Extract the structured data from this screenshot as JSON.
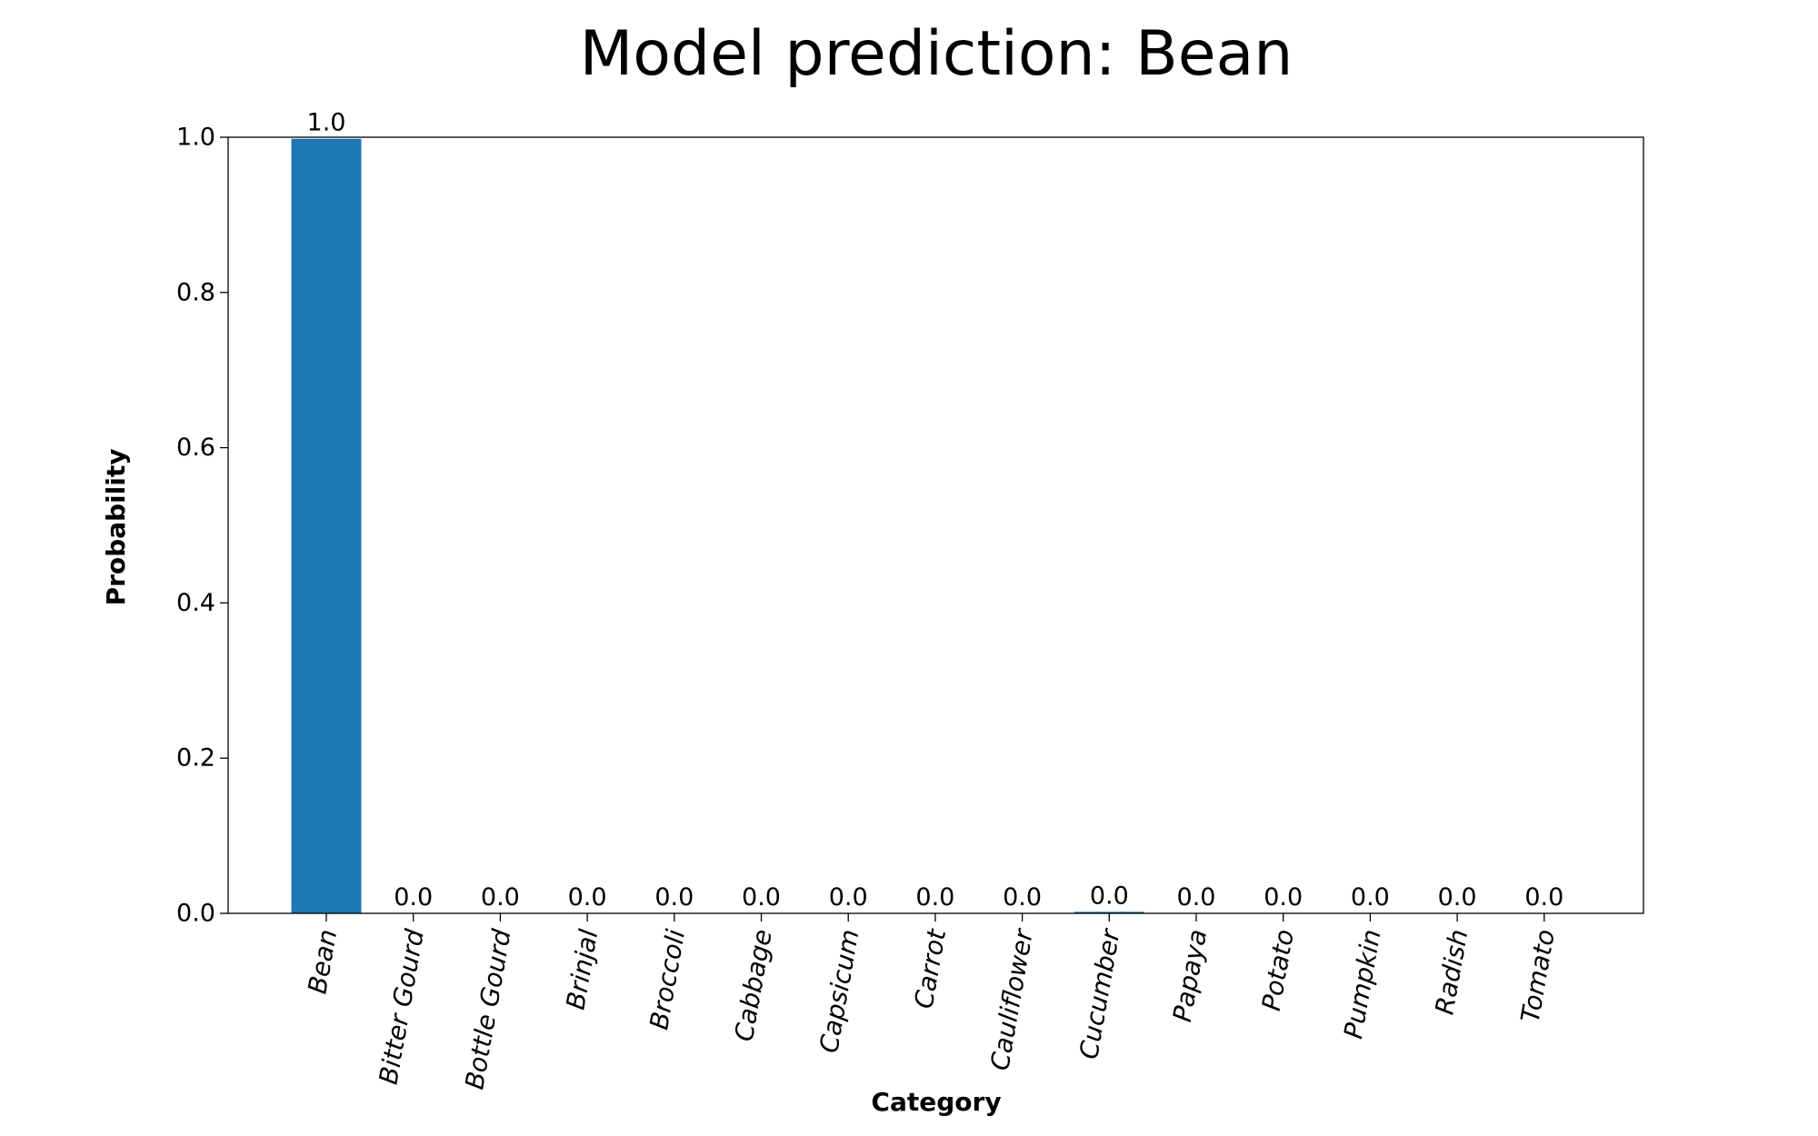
{
  "chart_data": {
    "type": "bar",
    "title": "Model prediction: Bean",
    "xlabel": "Category",
    "ylabel": "Probability",
    "categories": [
      "Bean",
      "Bitter Gourd",
      "Bottle Gourd",
      "Brinjal",
      "Broccoli",
      "Cabbage",
      "Capsicum",
      "Carrot",
      "Cauliflower",
      "Cucumber",
      "Papaya",
      "Potato",
      "Pumpkin",
      "Radish",
      "Tomato"
    ],
    "values": [
      0.998,
      0.0,
      0.0,
      0.0,
      0.0,
      0.0,
      0.0,
      0.0,
      0.0,
      0.002,
      0.0,
      0.0,
      0.0,
      0.0,
      0.0
    ],
    "value_labels": [
      "1.0",
      "0.0",
      "0.0",
      "0.0",
      "0.0",
      "0.0",
      "0.0",
      "0.0",
      "0.0",
      "0.0",
      "0.0",
      "0.0",
      "0.0",
      "0.0",
      "0.0"
    ],
    "yticks": [
      "0.0",
      "0.2",
      "0.4",
      "0.6",
      "0.8",
      "1.0"
    ],
    "ylim": [
      0,
      1.0
    ],
    "grid": false,
    "bar_color": "#1f77b4",
    "category_label_rotation": "rotated ~80 degrees"
  }
}
